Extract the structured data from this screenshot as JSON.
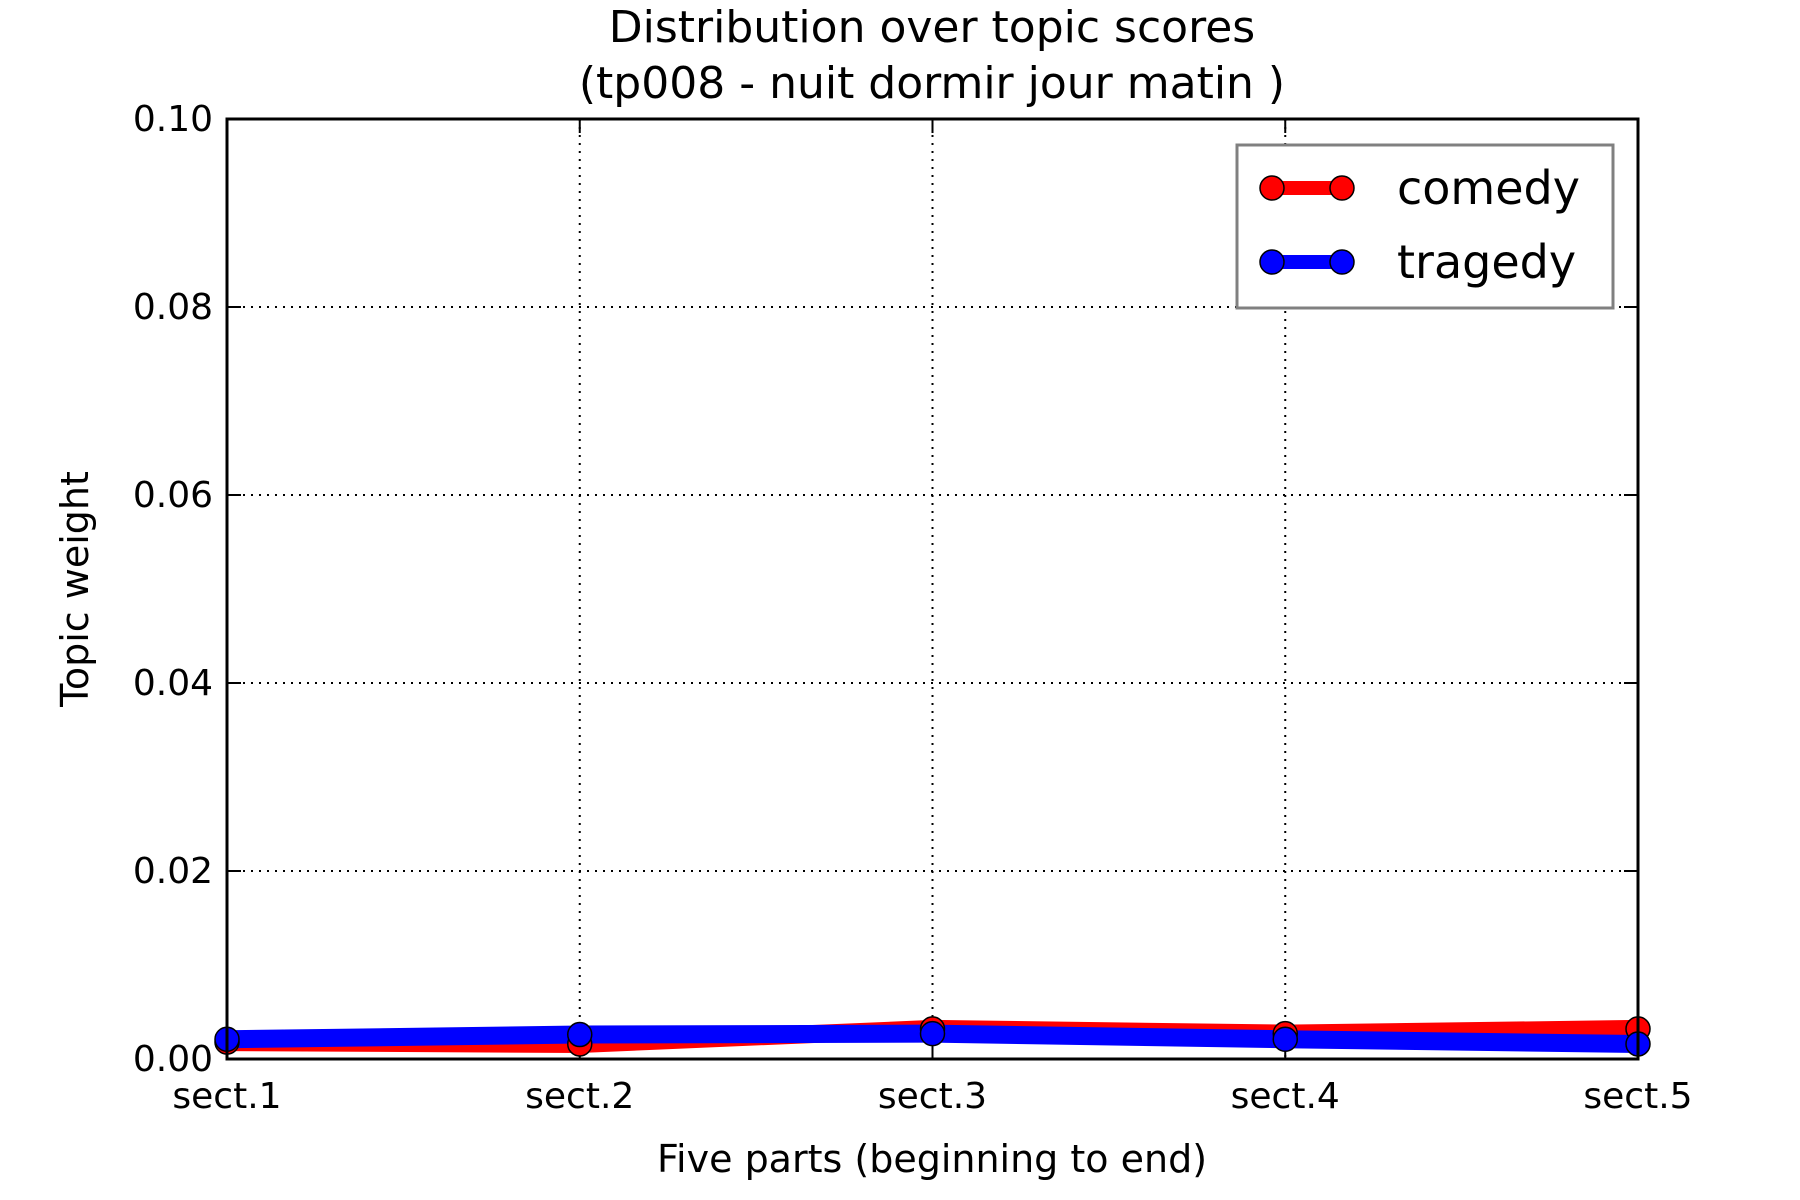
{
  "chart_data": {
    "type": "line",
    "title": "Distribution over topic scores",
    "subtitle": "(tp008 - nuit dormir jour matin )",
    "xlabel": "Five parts (beginning to end)",
    "ylabel": "Topic weight",
    "categories": [
      "sect.1",
      "sect.2",
      "sect.3",
      "sect.4",
      "sect.5"
    ],
    "ylim": [
      0,
      0.1
    ],
    "yticks": [
      "0.00",
      "0.02",
      "0.04",
      "0.06",
      "0.08",
      "0.10"
    ],
    "grid": true,
    "legend_position": "top-right",
    "series": [
      {
        "name": "comedy",
        "color": "#ff0000",
        "values": [
          0.0018,
          0.0016,
          0.0032,
          0.0027,
          0.0032
        ]
      },
      {
        "name": "tragedy",
        "color": "#0000ff",
        "values": [
          0.0021,
          0.0026,
          0.0027,
          0.0021,
          0.0016
        ]
      }
    ]
  }
}
